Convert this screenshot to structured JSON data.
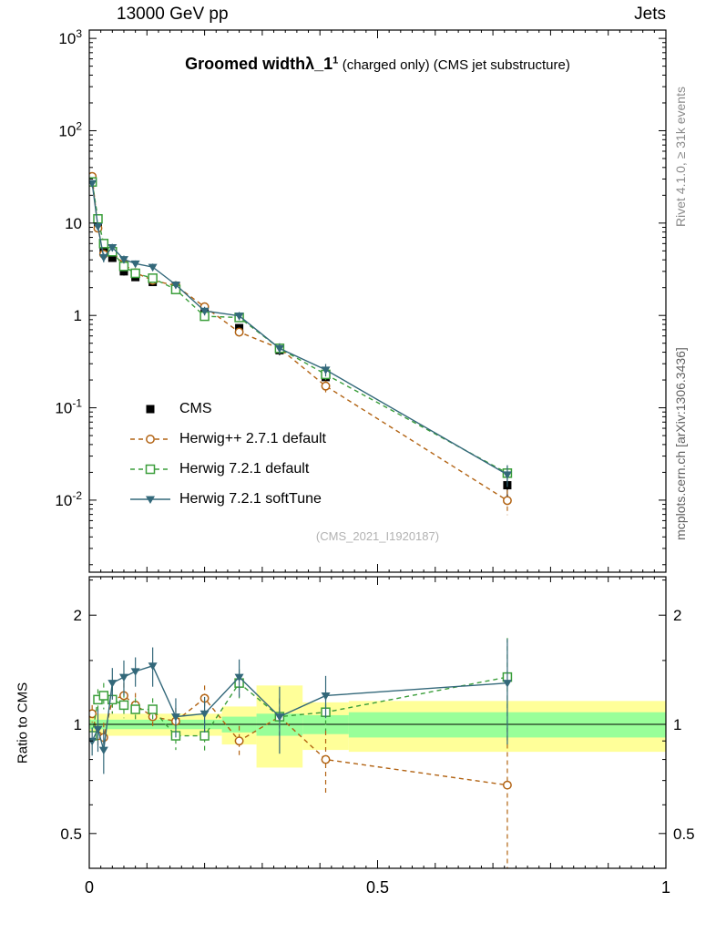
{
  "header": {
    "left": "13000 GeV pp",
    "right": "Jets"
  },
  "title": {
    "main": "Groomed widthλ_1",
    "sup": "1",
    "rest": "(charged only) (CMS jet substructure)"
  },
  "watermark": "(CMS_2021_I1920187)",
  "side_labels": {
    "top_right": "Rivet 4.1.0, ≥ 31k events",
    "bottom_right": "mcplots.cern.ch [arXiv:1306.3436]"
  },
  "ratio_label": "Ratio to CMS",
  "chart_data": {
    "type": "line",
    "x": [
      0.005,
      0.015,
      0.025,
      0.04,
      0.06,
      0.08,
      0.11,
      0.15,
      0.2,
      0.26,
      0.33,
      0.41,
      0.725
    ],
    "series": [
      {
        "name": "CMS",
        "color": "#000000",
        "marker": "filled-square",
        "line": "none",
        "values": [
          30,
          9.5,
          5.0,
          4.2,
          3.0,
          2.6,
          2.3,
          2.05,
          1.05,
          0.73,
          0.42,
          0.215,
          0.0145
        ],
        "errors": [
          2,
          0.7,
          0.4,
          0.35,
          0.3,
          0.22,
          0.18,
          0.15,
          0.1,
          0.07,
          0.05,
          0.03,
          0.004
        ],
        "ratio": null,
        "ratio_errors": null
      },
      {
        "name": "Herwig++ 2.7.1 default",
        "color": "#b26313",
        "marker": "open-circle",
        "line": "dashed",
        "values": [
          32,
          8.8,
          4.6,
          4.9,
          3.6,
          2.9,
          2.4,
          2.1,
          1.24,
          0.66,
          0.44,
          0.172,
          0.0099
        ],
        "errors": [
          2.5,
          0.7,
          0.4,
          0.4,
          0.3,
          0.25,
          0.2,
          0.17,
          0.12,
          0.07,
          0.05,
          0.025,
          0.003
        ],
        "ratio": [
          1.07,
          0.93,
          0.92,
          1.17,
          1.2,
          1.13,
          1.05,
          1.02,
          1.18,
          0.9,
          1.05,
          0.8,
          0.68
        ],
        "ratio_errors": [
          0.06,
          0.07,
          0.09,
          0.1,
          0.1,
          0.09,
          0.08,
          0.09,
          0.1,
          0.09,
          0.13,
          0.16,
          0.3
        ]
      },
      {
        "name": "Herwig 7.2.1 default",
        "color": "#3a9e3a",
        "marker": "open-square",
        "line": "dashed",
        "values": [
          27.9,
          11.1,
          6.0,
          4.9,
          3.4,
          2.86,
          2.53,
          1.91,
          0.98,
          0.95,
          0.44,
          0.23,
          0.0196
        ],
        "errors": [
          2.2,
          0.8,
          0.5,
          0.4,
          0.3,
          0.25,
          0.2,
          0.17,
          0.1,
          0.09,
          0.05,
          0.03,
          0.004
        ],
        "ratio": [
          0.93,
          1.17,
          1.2,
          1.17,
          1.13,
          1.1,
          1.1,
          0.93,
          0.93,
          1.3,
          1.05,
          1.08,
          1.35
        ],
        "ratio_errors": [
          0.05,
          0.08,
          0.1,
          0.1,
          0.09,
          0.08,
          0.08,
          0.08,
          0.09,
          0.12,
          0.12,
          0.12,
          0.38
        ]
      },
      {
        "name": "Herwig 7.2.1 softTune",
        "color": "#33687a",
        "marker": "filled-triangle-down",
        "line": "solid",
        "values": [
          27,
          9.2,
          4.25,
          5.46,
          4.05,
          3.64,
          3.34,
          2.15,
          1.12,
          0.99,
          0.44,
          0.258,
          0.0189
        ],
        "errors": [
          2.2,
          0.8,
          0.5,
          0.5,
          0.4,
          0.3,
          0.3,
          0.2,
          0.12,
          0.1,
          0.06,
          0.04,
          0.005
        ],
        "ratio": [
          0.9,
          0.97,
          0.85,
          1.3,
          1.35,
          1.4,
          1.45,
          1.05,
          1.07,
          1.35,
          1.05,
          1.2,
          1.3
        ],
        "ratio_errors": [
          0.08,
          0.13,
          0.12,
          0.13,
          0.15,
          0.13,
          0.18,
          0.13,
          0.12,
          0.16,
          0.22,
          0.16,
          0.42
        ]
      }
    ],
    "bands": {
      "yellow_color": "#ffff99",
      "green_color": "#99ff99",
      "segments": [
        {
          "x0": 0,
          "x1": 0.23,
          "y_lo": 0.93,
          "y_hi": 1.07,
          "g_lo": 0.97,
          "g_hi": 1.03
        },
        {
          "x0": 0.23,
          "x1": 0.29,
          "y_lo": 0.88,
          "y_hi": 1.12,
          "g_lo": 0.95,
          "g_hi": 1.05
        },
        {
          "x0": 0.29,
          "x1": 0.37,
          "y_lo": 0.76,
          "y_hi": 1.28,
          "g_lo": 0.93,
          "g_hi": 1.07
        },
        {
          "x0": 0.37,
          "x1": 0.45,
          "y_lo": 0.85,
          "y_hi": 1.15,
          "g_lo": 0.94,
          "g_hi": 1.06
        },
        {
          "x0": 0.45,
          "x1": 1.0,
          "y_lo": 0.84,
          "y_hi": 1.16,
          "g_lo": 0.92,
          "g_hi": 1.08
        }
      ]
    },
    "axes": {
      "x": {
        "min": 0,
        "max": 1,
        "tick_labels": [
          {
            "v": 0,
            "label": "0"
          },
          {
            "v": 0.5,
            "label": "0.5"
          },
          {
            "v": 1,
            "label": "1"
          }
        ]
      },
      "main_y": {
        "scale": "log",
        "label_exps": [
          3,
          2,
          1,
          0,
          -1,
          -2
        ]
      },
      "ratio_y": {
        "scale": "log",
        "major": [
          0.5,
          1,
          2
        ],
        "minor": [
          0.6,
          0.7,
          0.8,
          0.9,
          1.5,
          2.5
        ],
        "labels": [
          {
            "v": 2,
            "label": "2"
          },
          {
            "v": 1,
            "label": "1"
          },
          {
            "v": 0.5,
            "label": "0.5"
          }
        ]
      }
    },
    "ratio_reference": 1
  }
}
